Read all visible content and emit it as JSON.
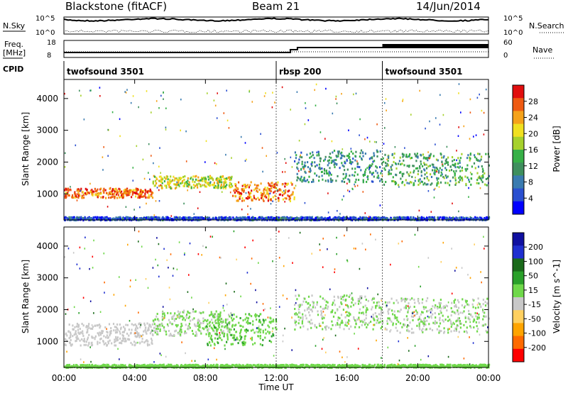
{
  "header": {
    "station": "Blackstone (fitACF)",
    "beam": "Beam 21",
    "date": "14/Jun/2014"
  },
  "noise_panel": {
    "left_label": "N.Sky",
    "right_label": "N.Search",
    "tick_top": "10^5",
    "tick_bottom": "10^0"
  },
  "freq_panel": {
    "left_label_1": "Freq.",
    "left_label_2": "[MHz]",
    "right_label": "Nave",
    "left_ticks": [
      "18",
      "8"
    ],
    "right_ticks": [
      "60",
      "0"
    ],
    "freq_steps": [
      {
        "start_h": 0,
        "end_h": 12.8,
        "level": 10.5
      },
      {
        "start_h": 12.8,
        "end_h": 13.2,
        "level": 12.5
      },
      {
        "start_h": 13.2,
        "end_h": 24,
        "level": 14.0
      }
    ]
  },
  "cpid_panel": {
    "label": "CPID",
    "segments": [
      {
        "name": "twofsound 3501",
        "start_h": 0
      },
      {
        "name": "rbsp 200",
        "start_h": 12.0
      },
      {
        "name": "twofsound 3501",
        "start_h": 18.0
      }
    ]
  },
  "x_axis": {
    "label": "Time UT",
    "ticks": [
      "00:00",
      "04:00",
      "08:00",
      "12:00",
      "16:00",
      "20:00",
      "00:00"
    ],
    "range_h": [
      0,
      24
    ]
  },
  "chart_data": [
    {
      "type": "heatmap",
      "title": "Power",
      "ylabel": "Slant Range [km]",
      "yticks": [
        "4000",
        "3000",
        "2000",
        "1000"
      ],
      "ylim": [
        180,
        4600
      ],
      "colorbar": {
        "label": "Power [dB]",
        "ticks": [
          "28",
          "24",
          "20",
          "16",
          "12",
          "8",
          "4"
        ],
        "range": [
          0,
          30
        ],
        "colors": [
          "#0000ff",
          "#2a4fd0",
          "#3a7bb0",
          "#3f8f5e",
          "#37b047",
          "#a6d12c",
          "#f0e020",
          "#f5a21a",
          "#ee5a12",
          "#e10e0e"
        ]
      },
      "bands": [
        {
          "start_h": 0.0,
          "end_h": 5.0,
          "range_km": [
            900,
            1200
          ],
          "power_db": 25
        },
        {
          "start_h": 5.0,
          "end_h": 9.5,
          "range_km": [
            1200,
            1600
          ],
          "power_db": 18
        },
        {
          "start_h": 9.5,
          "end_h": 13.0,
          "range_km": [
            800,
            1400
          ],
          "power_db": 24
        },
        {
          "start_h": 13.0,
          "end_h": 18.0,
          "range_km": [
            1400,
            2400
          ],
          "power_db": 10
        },
        {
          "start_h": 18.0,
          "end_h": 24.0,
          "range_km": [
            1300,
            2300
          ],
          "power_db": 12
        },
        {
          "start_h": 0.0,
          "end_h": 24.0,
          "range_km": [
            200,
            300
          ],
          "power_db": 5
        }
      ]
    },
    {
      "type": "heatmap",
      "title": "Velocity",
      "ylabel": "Slant Range [km]",
      "yticks": [
        "4000",
        "3000",
        "2000",
        "1000"
      ],
      "ylim": [
        180,
        4600
      ],
      "colorbar": {
        "label": "Velocity [m s^-1]",
        "ticks": [
          "200",
          "100",
          "50",
          "15",
          "-15",
          "-50",
          "-100",
          "-200"
        ],
        "range": [
          -250,
          250
        ],
        "colors": [
          "#ff0000",
          "#ff6a00",
          "#ffa400",
          "#ffd060",
          "#c8c8c8",
          "#6fd84a",
          "#2aa02a",
          "#1a6a1a",
          "#1f2fd0",
          "#1010a0"
        ]
      },
      "bands": [
        {
          "start_h": 0.0,
          "end_h": 5.0,
          "range_km": [
            900,
            1600
          ],
          "velocity": -30
        },
        {
          "start_h": 5.0,
          "end_h": 9.5,
          "range_km": [
            1200,
            2000
          ],
          "velocity": 0
        },
        {
          "start_h": 8.0,
          "end_h": 12.0,
          "range_km": [
            900,
            1900
          ],
          "velocity": 40
        },
        {
          "start_h": 13.0,
          "end_h": 18.0,
          "range_km": [
            1400,
            2500
          ],
          "velocity": 0
        },
        {
          "start_h": 18.0,
          "end_h": 24.0,
          "range_km": [
            1300,
            2400
          ],
          "velocity": 0
        },
        {
          "start_h": 0.0,
          "end_h": 24.0,
          "range_km": [
            200,
            300
          ],
          "velocity": 30
        }
      ]
    }
  ]
}
